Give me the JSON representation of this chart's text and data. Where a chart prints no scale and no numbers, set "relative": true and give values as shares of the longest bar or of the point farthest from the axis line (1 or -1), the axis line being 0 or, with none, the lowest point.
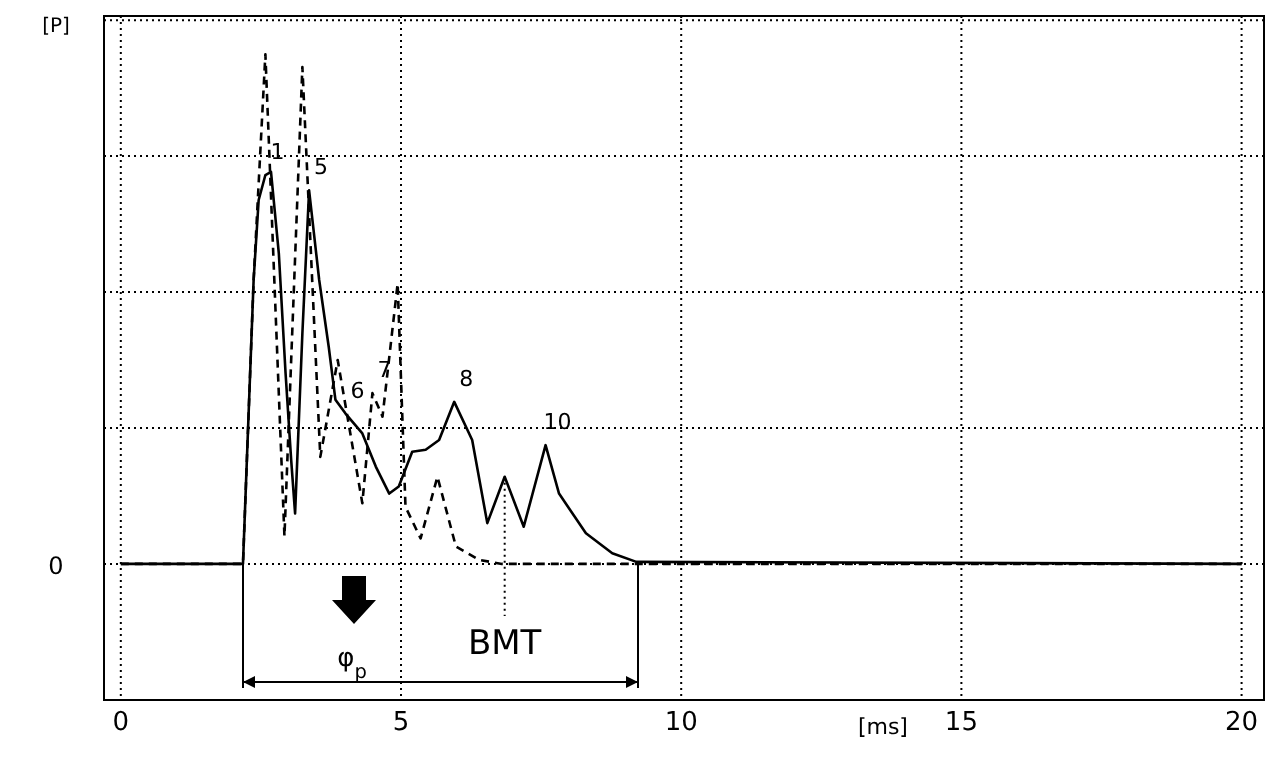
{
  "chart_data": {
    "type": "line",
    "relative": true,
    "ylabel": "[P]",
    "xlabel": "[ms]",
    "xlim": [
      -0.3,
      20.4
    ],
    "xticks": [
      0,
      5,
      10,
      15,
      20
    ],
    "grid": true,
    "marker": "none",
    "series": [
      {
        "color": "#000000",
        "line_style": "solid",
        "x": [
          0,
          2.18,
          2.37,
          2.46,
          2.58,
          2.68,
          2.82,
          2.94,
          3.04,
          3.11,
          3.24,
          3.36,
          3.54,
          3.71,
          3.83,
          4.01,
          4.31,
          4.55,
          4.79,
          4.96,
          5.2,
          5.44,
          5.68,
          5.95,
          6.27,
          6.54,
          6.85,
          7.19,
          7.58,
          7.82,
          8.3,
          8.77,
          9.2,
          20
        ],
        "values": [
          0,
          0,
          0.557,
          0.714,
          0.763,
          0.769,
          0.609,
          0.374,
          0.204,
          0.099,
          0.452,
          0.733,
          0.557,
          0.426,
          0.322,
          0.295,
          0.256,
          0.191,
          0.138,
          0.152,
          0.22,
          0.224,
          0.243,
          0.318,
          0.243,
          0.08,
          0.171,
          0.073,
          0.233,
          0.138,
          0.06,
          0.021,
          0.004,
          0
        ]
      },
      {
        "color": "#000000",
        "line_style": "dashed",
        "x": [
          0,
          2.18,
          2.37,
          2.58,
          2.92,
          3.24,
          3.56,
          3.87,
          4.31,
          4.49,
          4.67,
          4.94,
          5.08,
          5.35,
          5.65,
          5.98,
          6.39,
          6.8,
          20
        ],
        "values": [
          0,
          0,
          0.557,
          1.0,
          0.054,
          0.975,
          0.21,
          0.4,
          0.119,
          0.335,
          0.289,
          0.55,
          0.112,
          0.05,
          0.171,
          0.034,
          0.008,
          0,
          0
        ]
      }
    ],
    "annotations": [
      "0",
      "φ$_{p}$",
      {
        "text": "1",
        "x": 2.58,
        "y": 0.763
      },
      {
        "text": "5",
        "x": 3.36,
        "y": 0.733
      },
      {
        "text": "6",
        "x": 4.01,
        "y": 0.295
      },
      {
        "text": "7",
        "x": 4.49,
        "y": 0.335
      },
      {
        "text": "8",
        "x": 5.95,
        "y": 0.318
      },
      {
        "text": "10",
        "x": 7.58,
        "y": 0.233
      },
      {
        "text": "BMT",
        "x": 6.85,
        "y": 0.171
      }
    ]
  }
}
